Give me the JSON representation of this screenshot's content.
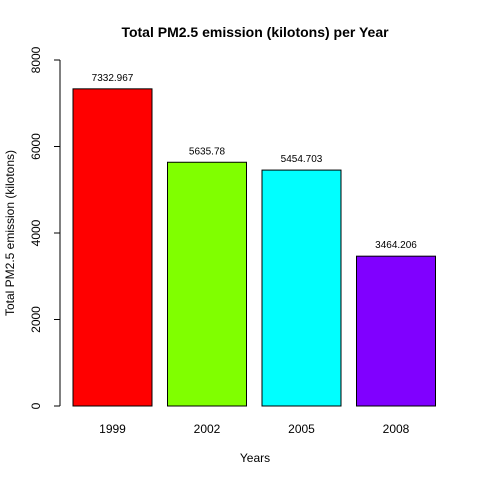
{
  "chart_data": {
    "type": "bar",
    "title": "Total PM2.5 emission (kilotons) per Year",
    "xlabel": "Years",
    "ylabel": "Total PM2.5 emission (kilotons)",
    "categories": [
      "1999",
      "2002",
      "2005",
      "2008"
    ],
    "values": [
      7332.967,
      5635.78,
      5454.703,
      3464.206
    ],
    "value_labels": [
      "7332.967",
      "5635.78",
      "5454.703",
      "3464.206"
    ],
    "colors": [
      "#ff0000",
      "#80ff00",
      "#00ffff",
      "#8000ff"
    ],
    "ylim": [
      0,
      8000
    ],
    "yticks": [
      0,
      2000,
      4000,
      6000,
      8000
    ],
    "grid": false,
    "legend": "none"
  }
}
